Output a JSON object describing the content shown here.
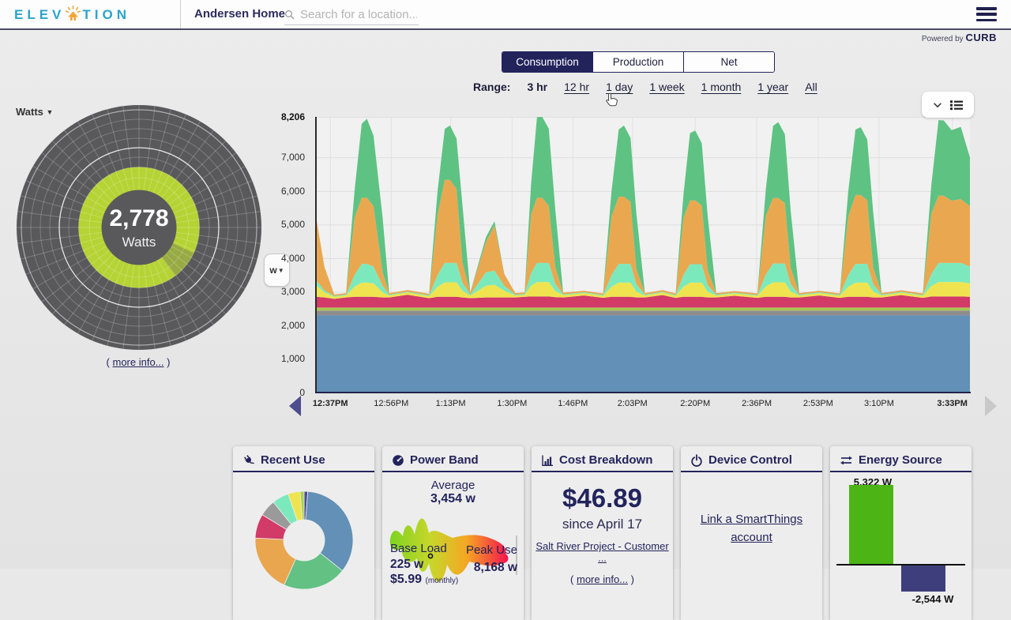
{
  "header": {
    "logo_part1": "ELEV",
    "logo_part2": "TION",
    "location_name": "Andersen Home",
    "search_placeholder": "Search for a location...",
    "powered_by": "Powered by",
    "brand": "CURB"
  },
  "tabs": [
    {
      "label": "Consumption",
      "active": true
    },
    {
      "label": "Production",
      "active": false
    },
    {
      "label": "Net",
      "active": false
    }
  ],
  "range": {
    "label": "Range:",
    "options": [
      {
        "label": "3 hr",
        "selected": true
      },
      {
        "label": "12 hr"
      },
      {
        "label": "1 day"
      },
      {
        "label": "1 week"
      },
      {
        "label": "1 month"
      },
      {
        "label": "1 year"
      },
      {
        "label": "All"
      }
    ]
  },
  "gauge": {
    "unit_selector": "Watts",
    "value": "2,778",
    "unit": "Watts",
    "more_info": {
      "open": "( ",
      "label": "more info...",
      "close": " )"
    },
    "ring_color": "#b5d334",
    "wedge_color": "#96a845",
    "bg_color": "#59595b"
  },
  "unit_button": "w",
  "chart_data": [
    {
      "id": "consumption-stacked",
      "type": "area",
      "stacked": true,
      "unit": "W",
      "ymax": 8206,
      "grid": true,
      "y_ticks": [
        {
          "label": "8,206",
          "value": 8206,
          "bold": true
        },
        {
          "label": "7,000",
          "value": 7000
        },
        {
          "label": "6,000",
          "value": 6000
        },
        {
          "label": "5,000",
          "value": 5000
        },
        {
          "label": "4,000",
          "value": 4000
        },
        {
          "label": "3,000",
          "value": 3000
        },
        {
          "label": "2,000",
          "value": 2000
        },
        {
          "label": "1,000",
          "value": 1000
        },
        {
          "label": "0",
          "value": 0
        }
      ],
      "x_ticks": [
        {
          "label": "12:37PM",
          "pos": 2.2,
          "bold": true
        },
        {
          "label": "12:56PM",
          "pos": 11.5
        },
        {
          "label": "1:13PM",
          "pos": 20.6
        },
        {
          "label": "1:30PM",
          "pos": 30.0
        },
        {
          "label": "1:46PM",
          "pos": 39.3
        },
        {
          "label": "2:03PM",
          "pos": 48.4
        },
        {
          "label": "2:20PM",
          "pos": 58.0
        },
        {
          "label": "2:36PM",
          "pos": 67.4
        },
        {
          "label": "2:53PM",
          "pos": 76.8
        },
        {
          "label": "3:10PM",
          "pos": 86.1
        },
        {
          "label": "3:33PM",
          "pos": 97.3,
          "bold": true
        }
      ],
      "x_percent": [
        0,
        1.3,
        2.8,
        4.6,
        5.9,
        7.0,
        7.8,
        8.8,
        10.2,
        11.2,
        14.0,
        17.3,
        18.6,
        19.7,
        20.5,
        21.5,
        22.4,
        23.6,
        26.0,
        27.3,
        28.8,
        30.5,
        31.9,
        32.9,
        33.8,
        34.6,
        35.6,
        36.6,
        37.8,
        41.0,
        43.9,
        45.2,
        46.3,
        47.1,
        48.1,
        49.0,
        50.3,
        53.0,
        55.0,
        56.2,
        57.2,
        58.0,
        59.0,
        59.9,
        61.2,
        64.0,
        67.5,
        68.8,
        69.9,
        70.7,
        71.7,
        72.6,
        73.9,
        77.0,
        80.1,
        81.4,
        82.5,
        83.3,
        84.3,
        85.2,
        86.5,
        89.5,
        92.8,
        94.1,
        95.2,
        96.0,
        97.2,
        98.6,
        100
      ],
      "series": [
        {
          "name": "blue",
          "color": "#6290b6",
          "values": 2300
        },
        {
          "name": "gray",
          "color": "#8d8d8d",
          "values": 140
        },
        {
          "name": "olive",
          "color": "#a9c653",
          "values": 90
        },
        {
          "name": "crimson",
          "color": "#d23a68",
          "values": [
            320,
            300,
            260,
            300,
            320,
            320,
            320,
            320,
            300,
            300,
            380,
            280,
            320,
            320,
            320,
            320,
            300,
            280,
            300,
            300,
            300,
            300,
            320,
            330,
            330,
            330,
            330,
            310,
            300,
            360,
            290,
            320,
            320,
            320,
            320,
            300,
            300,
            370,
            290,
            320,
            320,
            320,
            320,
            300,
            300,
            350,
            290,
            320,
            320,
            320,
            320,
            300,
            300,
            360,
            290,
            320,
            320,
            320,
            320,
            300,
            300,
            370,
            290,
            330,
            330,
            330,
            330,
            330,
            320
          ]
        },
        {
          "name": "yellow",
          "color": "#efe44f",
          "values": [
            350,
            150,
            60,
            60,
            300,
            420,
            420,
            400,
            150,
            60,
            70,
            60,
            300,
            430,
            430,
            430,
            200,
            80,
            350,
            380,
            200,
            60,
            60,
            320,
            430,
            430,
            430,
            180,
            70,
            70,
            60,
            300,
            420,
            420,
            420,
            170,
            60,
            80,
            60,
            300,
            420,
            420,
            420,
            170,
            60,
            70,
            60,
            310,
            430,
            430,
            430,
            180,
            60,
            70,
            60,
            300,
            420,
            420,
            420,
            180,
            60,
            75,
            60,
            310,
            430,
            430,
            430,
            430,
            400
          ]
        },
        {
          "name": "mint",
          "color": "#7ce9bd",
          "values": [
            150,
            60,
            25,
            25,
            350,
            560,
            560,
            500,
            200,
            25,
            25,
            25,
            350,
            580,
            580,
            580,
            250,
            30,
            400,
            420,
            150,
            25,
            25,
            380,
            570,
            570,
            570,
            220,
            25,
            25,
            25,
            350,
            560,
            560,
            560,
            220,
            25,
            25,
            25,
            350,
            550,
            550,
            550,
            200,
            25,
            25,
            25,
            360,
            560,
            560,
            560,
            220,
            25,
            25,
            25,
            350,
            560,
            560,
            560,
            220,
            25,
            25,
            25,
            360,
            570,
            570,
            570,
            570,
            500
          ]
        },
        {
          "name": "orange",
          "color": "#e9a850",
          "values": [
            1900,
            700,
            45,
            45,
            1700,
            1970,
            1970,
            1800,
            400,
            45,
            45,
            45,
            1800,
            2470,
            2470,
            2200,
            600,
            60,
            900,
            1350,
            350,
            45,
            45,
            1750,
            1940,
            1940,
            1700,
            500,
            50,
            45,
            45,
            1750,
            2000,
            2000,
            1850,
            450,
            45,
            45,
            45,
            1700,
            1900,
            1900,
            1750,
            450,
            45,
            45,
            45,
            1750,
            1950,
            1950,
            1800,
            480,
            45,
            45,
            45,
            1750,
            2050,
            2050,
            1900,
            500,
            45,
            45,
            45,
            1800,
            2000,
            2000,
            1850,
            1900,
            1800
          ]
        },
        {
          "name": "green",
          "color": "#5ec283",
          "values": [
            0,
            0,
            0,
            0,
            800,
            2200,
            2350,
            2100,
            1620,
            0,
            0,
            0,
            700,
            1520,
            1620,
            1500,
            1700,
            0,
            150,
            120,
            0,
            0,
            0,
            900,
            2400,
            2406,
            2300,
            1700,
            0,
            0,
            0,
            750,
            2000,
            2120,
            1900,
            1650,
            0,
            0,
            0,
            700,
            2000,
            2080,
            1850,
            1600,
            0,
            0,
            0,
            800,
            2150,
            2260,
            2050,
            1680,
            0,
            0,
            0,
            750,
            1950,
            2020,
            1800,
            1650,
            0,
            0,
            0,
            850,
            2250,
            2240,
            2100,
            2150,
            1450
          ]
        }
      ]
    },
    {
      "id": "recent-use-donut",
      "type": "pie",
      "inner_radius_ratio": 0.42,
      "segments": [
        {
          "name": "purple",
          "color": "#4b4b93",
          "fraction": 0.012
        },
        {
          "name": "blue",
          "color": "#6290b6",
          "fraction": 0.345
        },
        {
          "name": "green",
          "color": "#62c183",
          "fraction": 0.21
        },
        {
          "name": "orange",
          "color": "#e9a64f",
          "fraction": 0.19
        },
        {
          "name": "crimson",
          "color": "#d23a68",
          "fraction": 0.08
        },
        {
          "name": "gray",
          "color": "#9a9a9a",
          "fraction": 0.055
        },
        {
          "name": "mint",
          "color": "#7ce9bd",
          "fraction": 0.055
        },
        {
          "name": "yellow",
          "color": "#efe44f",
          "fraction": 0.04
        },
        {
          "name": "lightgreen",
          "color": "#a9d34f",
          "fraction": 0.013
        }
      ]
    },
    {
      "id": "energy-source-bars",
      "type": "bar",
      "values": [
        5322,
        -2544
      ],
      "labels": [
        "5,322 W",
        "-2,544 W"
      ],
      "colors": [
        "#4cb515",
        "#3e3e7c"
      ]
    },
    {
      "id": "power-band",
      "type": "area",
      "average_w": 3454,
      "base_load_w": 225,
      "peak_use_w": 8168,
      "monthly_base_cost": "$5.99",
      "gradient": [
        "#7ed321",
        "#c8d62b",
        "#f5a623",
        "#f5134f"
      ]
    }
  ],
  "cards": {
    "recent_use": {
      "title": "Recent Use"
    },
    "power_band": {
      "title": "Power Band",
      "average_label": "Average",
      "average_value": "3,454 w",
      "base_label": "Base Load",
      "base_value": "225 w",
      "base_cost": "$5.99",
      "base_cost_period": "(monthly)",
      "peak_label": "Peak Use",
      "peak_value": "8,168 w"
    },
    "cost_breakdown": {
      "title": "Cost Breakdown",
      "amount": "$46.89",
      "since": "since April 17",
      "provider_link": "Salt River Project - Customer ...",
      "more_info": {
        "open": "( ",
        "label": "more info...",
        "close": " )"
      }
    },
    "device_control": {
      "title": "Device Control",
      "link_line1": "Link a SmartThings",
      "link_line2": "account"
    },
    "energy_source": {
      "title": "Energy Source"
    }
  }
}
